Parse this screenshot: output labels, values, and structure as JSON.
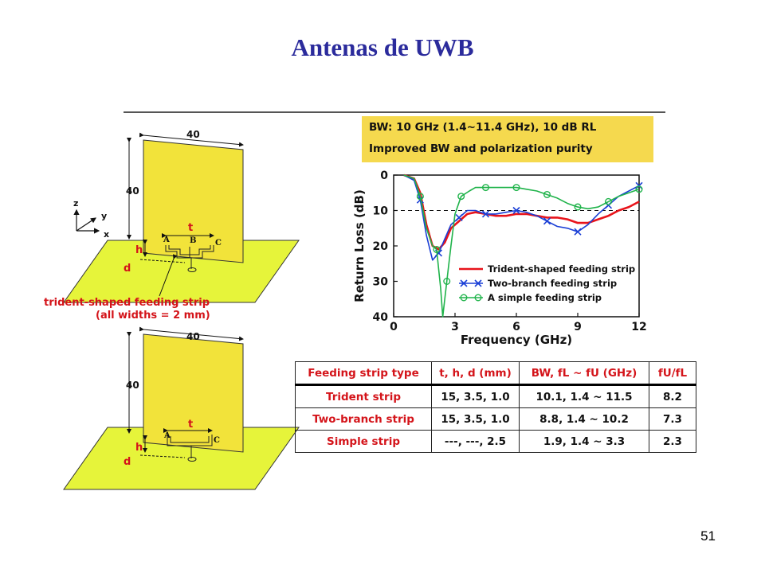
{
  "slide": {
    "title": "Antenas de UWB",
    "page_number": "51"
  },
  "summary_box": {
    "line1": "BW: 10 GHz (1.4~11.4 GHz), 10 dB RL",
    "line2": "Improved BW and polarization purity",
    "color": "#f5d94e"
  },
  "antenna_diagrams": {
    "plate_width": "40",
    "plate_height": "40",
    "axis_z": "z",
    "axis_y": "y",
    "axis_x": "x",
    "label_t": "t",
    "label_h": "h",
    "label_d": "d",
    "point_a": "A",
    "point_b": "B",
    "point_c": "C",
    "caption_line1": "trident-shaped feeding strip",
    "caption_line2": "(all widths = 2 mm)"
  },
  "chart_data": {
    "type": "line",
    "xlabel": "Frequency (GHz)",
    "ylabel": "Return Loss (dB)",
    "xlim": [
      0,
      12
    ],
    "ylim": [
      0,
      40
    ],
    "y_inverted": true,
    "x_ticks": [
      "0",
      "3",
      "6",
      "9",
      "12"
    ],
    "y_ticks": [
      "0",
      "10",
      "20",
      "30",
      "40"
    ],
    "reference_line": {
      "y": 10,
      "style": "dashed"
    },
    "legend_position": "bottom-right",
    "series": [
      {
        "name": "Trident-shaped feeding strip",
        "color": "#e8141b",
        "marker": "none",
        "x": [
          0.5,
          1.0,
          1.3,
          1.6,
          1.9,
          2.2,
          2.5,
          2.8,
          3.2,
          3.6,
          4.0,
          4.5,
          5.0,
          5.5,
          6.0,
          6.5,
          7.0,
          7.5,
          8.0,
          8.5,
          9.0,
          9.5,
          10.0,
          10.5,
          11.0,
          11.5,
          12.0
        ],
        "y": [
          0,
          1,
          5,
          14,
          20,
          21,
          19,
          15,
          13,
          11,
          10.5,
          11,
          11.5,
          11.5,
          11,
          11,
          11.5,
          12,
          12,
          12.5,
          13.5,
          13.5,
          12.5,
          11.5,
          10,
          9,
          7.5
        ]
      },
      {
        "name": "Two-branch feeding strip",
        "color": "#1a3fd6",
        "marker": "x",
        "x": [
          0.5,
          1.0,
          1.3,
          1.6,
          1.9,
          2.2,
          2.5,
          2.8,
          3.2,
          3.6,
          4.0,
          4.5,
          5.0,
          5.5,
          6.0,
          6.5,
          7.0,
          7.5,
          8.0,
          8.5,
          9.0,
          9.5,
          10.0,
          10.5,
          11.0,
          11.5,
          12.0
        ],
        "y": [
          0,
          1.5,
          7,
          17,
          24,
          22,
          18,
          14,
          12,
          10,
          10,
          11,
          11,
          10.5,
          10,
          10.5,
          11.5,
          13,
          14.5,
          15,
          16,
          14,
          11,
          8.5,
          6,
          4.5,
          3
        ]
      },
      {
        "name": "A simple feeding strip",
        "color": "#1fb34a",
        "marker": "circle",
        "x": [
          0.5,
          1.0,
          1.3,
          1.6,
          1.9,
          2.1,
          2.3,
          2.4,
          2.6,
          2.8,
          3.0,
          3.3,
          3.7,
          4.0,
          4.5,
          5.0,
          5.5,
          6.0,
          6.5,
          7.0,
          7.5,
          8.0,
          8.5,
          9.0,
          9.5,
          10.0,
          10.5,
          11.0,
          11.5,
          12.0
        ],
        "y": [
          0,
          1,
          6,
          15,
          20,
          21,
          32,
          40,
          30,
          20,
          11,
          6,
          4.5,
          3.5,
          3.5,
          3.5,
          3.5,
          3.5,
          4,
          4.5,
          5.5,
          6.5,
          8,
          9,
          9.5,
          9,
          7.5,
          6,
          5,
          4
        ]
      }
    ]
  },
  "comparison_table": {
    "headers": [
      "Feeding strip type",
      "t, h, d (mm)",
      "BW, fL ~ fU (GHz)",
      "fU/fL"
    ],
    "rows": [
      [
        "Trident strip",
        "15, 3.5, 1.0",
        "10.1, 1.4 ~ 11.5",
        "8.2"
      ],
      [
        "Two-branch strip",
        "15, 3.5, 1.0",
        "8.8, 1.4 ~ 10.2",
        "7.3"
      ],
      [
        "Simple strip",
        "---, ---, 2.5",
        "1.9, 1.4 ~ 3.3",
        "2.3"
      ]
    ]
  }
}
